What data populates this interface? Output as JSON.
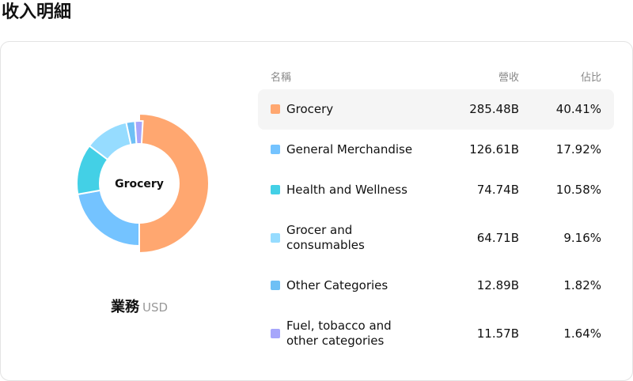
{
  "header": {
    "title": "收入明細"
  },
  "donut": {
    "center_label": "Grocery"
  },
  "segment": {
    "name": "業務",
    "currency": "USD"
  },
  "table": {
    "columns": {
      "name": "名稱",
      "revenue": "營收",
      "share": "佔比"
    }
  },
  "chart_data": {
    "type": "pie",
    "style": "donut",
    "highlighted": "Grocery",
    "unit": "USD",
    "categories": [
      "Grocery",
      "General Merchandise",
      "Health and Wellness",
      "Grocer and consumables",
      "Other Categories",
      "Fuel, tobacco and other categories"
    ],
    "name_lines": [
      [
        "Grocery"
      ],
      [
        "General Merchandise"
      ],
      [
        "Health and Wellness"
      ],
      [
        "Grocer and",
        "consumables"
      ],
      [
        "Other Categories"
      ],
      [
        "Fuel, tobacco and",
        "other categories"
      ]
    ],
    "revenue_labels": [
      "285.48B",
      "126.61B",
      "74.74B",
      "64.71B",
      "12.89B",
      "11.57B"
    ],
    "values": [
      285.48,
      126.61,
      74.74,
      64.71,
      12.89,
      11.57
    ],
    "share_labels": [
      "40.41%",
      "17.92%",
      "10.58%",
      "9.16%",
      "1.82%",
      "1.64%"
    ],
    "colors": [
      "#ffa770",
      "#74c3ff",
      "#43d0e6",
      "#96dcff",
      "#6ec0f5",
      "#a6a6fb"
    ],
    "donut_slices": [
      {
        "label": "Grocery",
        "share": 0.5
      },
      {
        "label": "General Merchandise",
        "share": 0.2219
      },
      {
        "label": "Health and Wellness",
        "share": 0.131
      },
      {
        "label": "Grocer and consumables",
        "share": 0.1134
      },
      {
        "label": "Other Categories",
        "share": 0.0226
      },
      {
        "label": "Fuel, tobacco and other categories",
        "share": 0.0203
      }
    ]
  }
}
